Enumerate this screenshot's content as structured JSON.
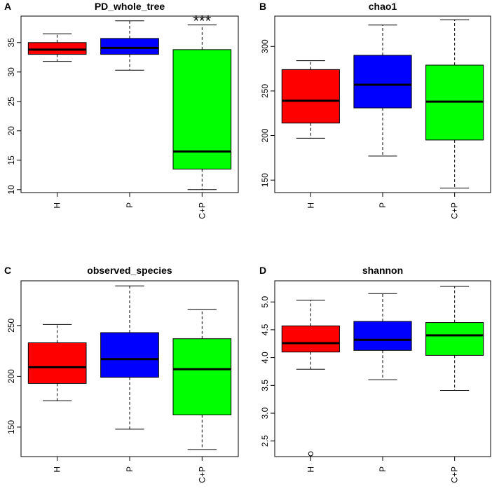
{
  "chart_data": [
    {
      "letter": "A",
      "type": "boxplot",
      "title": "PD_whole_tree",
      "categories": [
        "H",
        "P",
        "C+P"
      ],
      "colors": [
        "#ff0000",
        "#0000ff",
        "#00ff00"
      ],
      "ylim": [
        9.5,
        39.5
      ],
      "yticks": [
        "10",
        "15",
        "20",
        "25",
        "30",
        "35"
      ],
      "series": [
        {
          "name": "H",
          "min": 31.8,
          "q1": 33.0,
          "median": 33.8,
          "q3": 35.0,
          "max": 36.5,
          "outliers": []
        },
        {
          "name": "P",
          "min": 30.3,
          "q1": 33.0,
          "median": 34.1,
          "q3": 35.7,
          "max": 38.7,
          "outliers": []
        },
        {
          "name": "C+P",
          "min": 10.0,
          "q1": 13.5,
          "median": 16.5,
          "q3": 33.8,
          "max": 38.0,
          "outliers": []
        }
      ],
      "annotation": {
        "text": "***",
        "category": "C+P"
      }
    },
    {
      "letter": "B",
      "type": "boxplot",
      "title": "chao1",
      "categories": [
        "H",
        "P",
        "C+P"
      ],
      "colors": [
        "#ff0000",
        "#0000ff",
        "#00ff00"
      ],
      "ylim": [
        136,
        334
      ],
      "yticks": [
        "150",
        "200",
        "250",
        "300"
      ],
      "series": [
        {
          "name": "H",
          "min": 197,
          "q1": 214,
          "median": 239,
          "q3": 274,
          "max": 284,
          "outliers": []
        },
        {
          "name": "P",
          "min": 177,
          "q1": 231,
          "median": 257,
          "q3": 290,
          "max": 324,
          "outliers": []
        },
        {
          "name": "C+P",
          "min": 141,
          "q1": 195,
          "median": 238,
          "q3": 279,
          "max": 330,
          "outliers": []
        }
      ]
    },
    {
      "letter": "C",
      "type": "boxplot",
      "title": "observed_species",
      "categories": [
        "H",
        "P",
        "C+P"
      ],
      "colors": [
        "#ff0000",
        "#0000ff",
        "#00ff00"
      ],
      "ylim": [
        121,
        294
      ],
      "yticks": [
        "150",
        "200",
        "250"
      ],
      "series": [
        {
          "name": "H",
          "min": 176,
          "q1": 193,
          "median": 209,
          "q3": 233,
          "max": 251,
          "outliers": []
        },
        {
          "name": "P",
          "min": 148,
          "q1": 199,
          "median": 217,
          "q3": 243,
          "max": 289,
          "outliers": []
        },
        {
          "name": "C+P",
          "min": 128,
          "q1": 162,
          "median": 207,
          "q3": 237,
          "max": 266,
          "outliers": []
        }
      ]
    },
    {
      "letter": "D",
      "type": "boxplot",
      "title": "shannon",
      "categories": [
        "H",
        "P",
        "C+P"
      ],
      "colors": [
        "#ff0000",
        "#0000ff",
        "#00ff00"
      ],
      "ylim": [
        2.22,
        5.38
      ],
      "yticks": [
        "2.5",
        "3.0",
        "3.5",
        "4.0",
        "4.5",
        "5.0"
      ],
      "series": [
        {
          "name": "H",
          "min": 3.79,
          "q1": 4.1,
          "median": 4.26,
          "q3": 4.57,
          "max": 5.03,
          "outliers": [
            2.27
          ]
        },
        {
          "name": "P",
          "min": 3.6,
          "q1": 4.13,
          "median": 4.32,
          "q3": 4.65,
          "max": 5.15,
          "outliers": []
        },
        {
          "name": "C+P",
          "min": 3.41,
          "q1": 4.04,
          "median": 4.4,
          "q3": 4.63,
          "max": 5.28,
          "outliers": []
        }
      ]
    }
  ]
}
